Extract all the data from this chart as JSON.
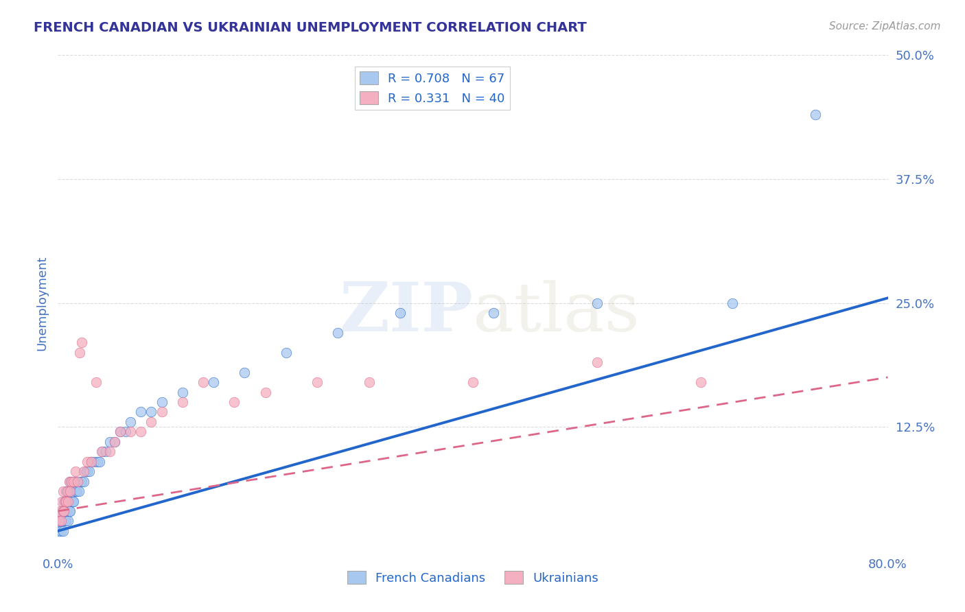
{
  "title": "FRENCH CANADIAN VS UKRAINIAN UNEMPLOYMENT CORRELATION CHART",
  "source": "Source: ZipAtlas.com",
  "ylabel": "Unemployment",
  "xlim": [
    0,
    0.8
  ],
  "ylim": [
    0,
    0.5
  ],
  "xticks": [
    0.0,
    0.2,
    0.4,
    0.6,
    0.8
  ],
  "yticks": [
    0.0,
    0.125,
    0.25,
    0.375,
    0.5
  ],
  "blue_R": 0.708,
  "blue_N": 67,
  "pink_R": 0.331,
  "pink_N": 40,
  "blue_color": "#a8c8f0",
  "pink_color": "#f4afc0",
  "blue_line_color": "#2266cc",
  "pink_line_color": "#dd6688",
  "title_color": "#333399",
  "axis_label_color": "#4472c4",
  "tick_label_color": "#4472c4",
  "background_color": "#ffffff",
  "grid_color": "#cccccc",
  "blue_scatter_x": [
    0.001,
    0.002,
    0.003,
    0.003,
    0.004,
    0.004,
    0.005,
    0.005,
    0.005,
    0.006,
    0.006,
    0.006,
    0.007,
    0.007,
    0.007,
    0.008,
    0.008,
    0.008,
    0.009,
    0.009,
    0.01,
    0.01,
    0.01,
    0.011,
    0.011,
    0.012,
    0.012,
    0.013,
    0.013,
    0.014,
    0.015,
    0.015,
    0.016,
    0.017,
    0.018,
    0.019,
    0.02,
    0.022,
    0.023,
    0.025,
    0.027,
    0.028,
    0.03,
    0.032,
    0.035,
    0.038,
    0.04,
    0.043,
    0.046,
    0.05,
    0.055,
    0.06,
    0.065,
    0.07,
    0.08,
    0.09,
    0.1,
    0.12,
    0.15,
    0.18,
    0.22,
    0.27,
    0.33,
    0.42,
    0.52,
    0.65,
    0.73
  ],
  "blue_scatter_y": [
    0.02,
    0.03,
    0.02,
    0.03,
    0.03,
    0.04,
    0.02,
    0.03,
    0.04,
    0.03,
    0.04,
    0.05,
    0.03,
    0.04,
    0.05,
    0.03,
    0.04,
    0.06,
    0.04,
    0.05,
    0.03,
    0.05,
    0.06,
    0.04,
    0.06,
    0.04,
    0.07,
    0.05,
    0.07,
    0.05,
    0.05,
    0.07,
    0.06,
    0.06,
    0.06,
    0.07,
    0.06,
    0.07,
    0.07,
    0.07,
    0.08,
    0.08,
    0.08,
    0.09,
    0.09,
    0.09,
    0.09,
    0.1,
    0.1,
    0.11,
    0.11,
    0.12,
    0.12,
    0.13,
    0.14,
    0.14,
    0.15,
    0.16,
    0.17,
    0.18,
    0.2,
    0.22,
    0.24,
    0.24,
    0.25,
    0.25,
    0.44
  ],
  "pink_scatter_x": [
    0.001,
    0.002,
    0.003,
    0.004,
    0.005,
    0.005,
    0.006,
    0.007,
    0.008,
    0.009,
    0.01,
    0.011,
    0.012,
    0.013,
    0.015,
    0.017,
    0.019,
    0.021,
    0.023,
    0.025,
    0.028,
    0.032,
    0.037,
    0.042,
    0.05,
    0.055,
    0.06,
    0.07,
    0.08,
    0.09,
    0.1,
    0.12,
    0.14,
    0.17,
    0.2,
    0.25,
    0.3,
    0.4,
    0.52,
    0.62
  ],
  "pink_scatter_y": [
    0.03,
    0.04,
    0.03,
    0.05,
    0.04,
    0.06,
    0.04,
    0.05,
    0.05,
    0.06,
    0.05,
    0.07,
    0.06,
    0.07,
    0.07,
    0.08,
    0.07,
    0.2,
    0.21,
    0.08,
    0.09,
    0.09,
    0.17,
    0.1,
    0.1,
    0.11,
    0.12,
    0.12,
    0.12,
    0.13,
    0.14,
    0.15,
    0.17,
    0.15,
    0.16,
    0.17,
    0.17,
    0.17,
    0.19,
    0.17
  ],
  "blue_line_x0": 0.0,
  "blue_line_y0": 0.02,
  "blue_line_x1": 0.8,
  "blue_line_y1": 0.255,
  "pink_line_x0": 0.0,
  "pink_line_y0": 0.04,
  "pink_line_x1": 0.8,
  "pink_line_y1": 0.175
}
